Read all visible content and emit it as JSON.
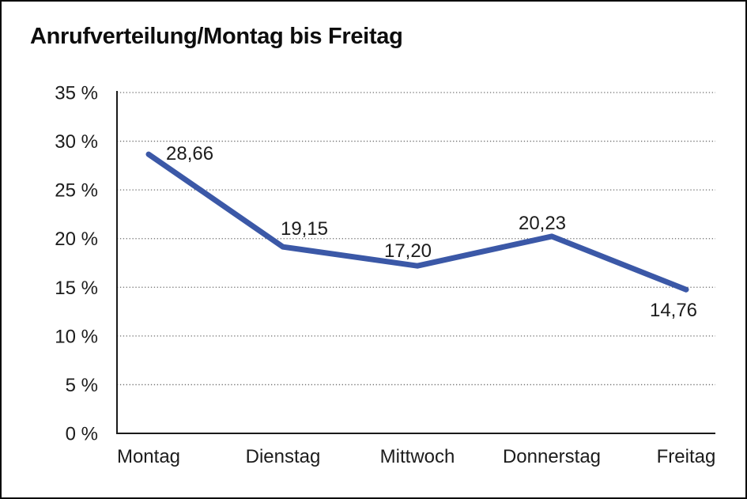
{
  "window": {
    "background": "#ffffff",
    "frame_border_color": "#0a0a0a"
  },
  "chart_data": {
    "type": "line",
    "title": "Anrufverteilung/Montag bis Freitag",
    "categories": [
      "Montag",
      "Dienstag",
      "Mittwoch",
      "Donnerstag",
      "Freitag"
    ],
    "series": [
      {
        "name": "Anrufverteilung",
        "values": [
          28.66,
          19.15,
          17.2,
          20.23,
          14.76
        ]
      }
    ],
    "point_labels": [
      "28,66",
      "19,15",
      "17,20",
      "20,23",
      "14,76"
    ],
    "point_label_placements": [
      "right",
      "above-right",
      "above-left",
      "above-left",
      "below-left"
    ],
    "ytick_labels": [
      "0 %",
      "5 %",
      "10 %",
      "15 %",
      "20 %",
      "25 %",
      "30 %",
      "35 %"
    ],
    "ylim": [
      0,
      35
    ],
    "ytick_step": 5,
    "xlabel": "",
    "ylabel": "",
    "grid": "horizontal-dotted",
    "legend": "none",
    "colors": {
      "line": "#3B58A7",
      "axis": "#1a1a1a",
      "gridline": "#6e6e6e",
      "text": "#1c1c1c"
    }
  }
}
